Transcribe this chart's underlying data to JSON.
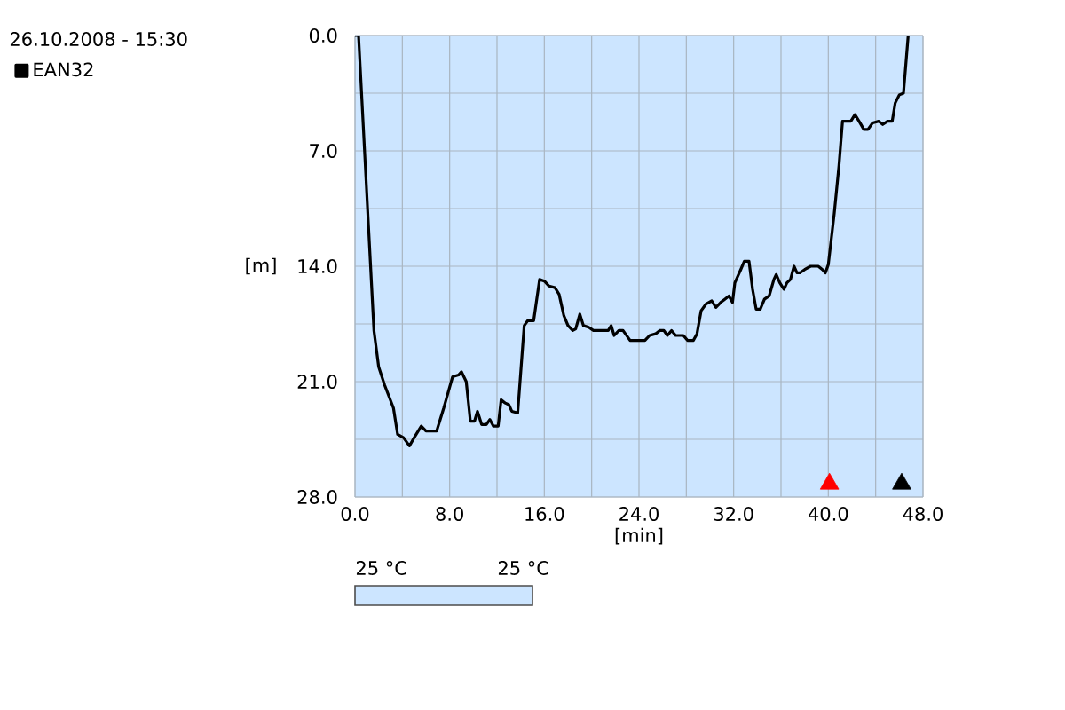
{
  "chart_data": {
    "type": "line",
    "title": "26.10.2008 - 15:30",
    "xlabel": "[min]",
    "ylabel": "[m]",
    "annotations": [
      "25 °C",
      "25 °C"
    ],
    "series": [
      {
        "name": "EAN32",
        "color": "#000000",
        "x": [
          0,
          0.3,
          1.6,
          2.0,
          2.5,
          3.25,
          3.6,
          4.1,
          4.6,
          5.0,
          5.6,
          6.0,
          6.9,
          7.5,
          8.25,
          8.75,
          9.0,
          9.4,
          9.75,
          10.1,
          10.35,
          10.7,
          11.1,
          11.4,
          11.7,
          12.1,
          12.35,
          12.7,
          13.0,
          13.25,
          13.75,
          14.3,
          14.6,
          15.1,
          15.6,
          16.0,
          16.4,
          16.9,
          17.25,
          17.65,
          18.0,
          18.4,
          18.65,
          19.0,
          19.3,
          19.75,
          20.15,
          21.4,
          21.65,
          21.9,
          22.3,
          22.65,
          23.25,
          24.5,
          24.9,
          25.4,
          25.75,
          26.1,
          26.4,
          26.75,
          27.1,
          27.75,
          28.1,
          28.6,
          28.9,
          29.25,
          29.65,
          30.15,
          30.5,
          30.9,
          31.25,
          31.6,
          31.9,
          32.1,
          32.6,
          32.9,
          33.3,
          33.6,
          33.9,
          34.25,
          34.6,
          35.0,
          35.4,
          35.6,
          35.9,
          36.25,
          36.5,
          36.8,
          37.1,
          37.35,
          37.6,
          38.0,
          38.5,
          39.15,
          39.5,
          39.75,
          40.0,
          40.5,
          40.9,
          41.2,
          41.9,
          42.25,
          42.6,
          43.0,
          43.35,
          43.75,
          44.25,
          44.6,
          45.0,
          45.4,
          45.65,
          46.0,
          46.35,
          46.75
        ],
        "values": [
          0,
          0,
          17.9,
          20.1,
          21.2,
          22.6,
          24.2,
          24.4,
          24.9,
          24.4,
          23.7,
          24.0,
          24.0,
          22.6,
          20.7,
          20.6,
          20.4,
          21.0,
          23.4,
          23.4,
          22.8,
          23.6,
          23.6,
          23.3,
          23.7,
          23.7,
          22.1,
          22.3,
          22.4,
          22.8,
          22.9,
          17.6,
          17.3,
          17.3,
          14.8,
          14.9,
          15.2,
          15.3,
          15.7,
          17.0,
          17.6,
          17.9,
          17.8,
          16.9,
          17.6,
          17.7,
          17.9,
          17.9,
          17.6,
          18.2,
          17.9,
          17.9,
          18.5,
          18.5,
          18.2,
          18.1,
          17.9,
          17.9,
          18.2,
          17.9,
          18.2,
          18.2,
          18.5,
          18.5,
          18.1,
          16.7,
          16.3,
          16.1,
          16.5,
          16.2,
          16.0,
          15.8,
          16.2,
          15.0,
          14.2,
          13.7,
          13.7,
          15.4,
          16.6,
          16.6,
          16.0,
          15.8,
          14.8,
          14.5,
          15.0,
          15.4,
          15.0,
          14.8,
          14.0,
          14.4,
          14.4,
          14.2,
          14.0,
          14.0,
          14.2,
          14.4,
          13.9,
          10.8,
          7.9,
          5.2,
          5.2,
          4.8,
          5.2,
          5.7,
          5.7,
          5.3,
          5.2,
          5.4,
          5.2,
          5.2,
          4.1,
          3.6,
          3.5,
          0
        ]
      },
      {
        "type": "scatter",
        "color": "#ff0000",
        "marker": "triangle",
        "x": [
          40.1
        ],
        "values": [
          27.2
        ]
      },
      {
        "type": "scatter",
        "color": "#000000",
        "marker": "triangle",
        "x": [
          46.2
        ],
        "values": [
          27.2
        ]
      }
    ],
    "xlim": [
      0,
      48
    ],
    "xticks": [
      {
        "value": 0,
        "label": "0.0"
      },
      {
        "value": 4,
        "label": null
      },
      {
        "value": 8,
        "label": "8.0"
      },
      {
        "value": 12,
        "label": null
      },
      {
        "value": 16,
        "label": "16.0"
      },
      {
        "value": 20,
        "label": null
      },
      {
        "value": 24,
        "label": "24.0"
      },
      {
        "value": 28,
        "label": null
      },
      {
        "value": 32,
        "label": "32.0"
      },
      {
        "value": 36,
        "label": null
      },
      {
        "value": 40,
        "label": "40.0"
      },
      {
        "value": 44,
        "label": null
      },
      {
        "value": 48,
        "label": "48.0"
      }
    ],
    "ylim": [
      28,
      0
    ],
    "yticks": [
      {
        "value": 0,
        "label": "0.0"
      },
      {
        "value": 3.5,
        "label": null
      },
      {
        "value": 7,
        "label": "7.0"
      },
      {
        "value": 10.5,
        "label": null
      },
      {
        "value": 14,
        "label": "14.0"
      },
      {
        "value": 17.5,
        "label": null
      },
      {
        "value": 21,
        "label": "21.0"
      },
      {
        "value": 24.5,
        "label": null
      },
      {
        "value": 28,
        "label": "28.0"
      }
    ],
    "grid": true,
    "legend": "top left",
    "marker": "none"
  }
}
